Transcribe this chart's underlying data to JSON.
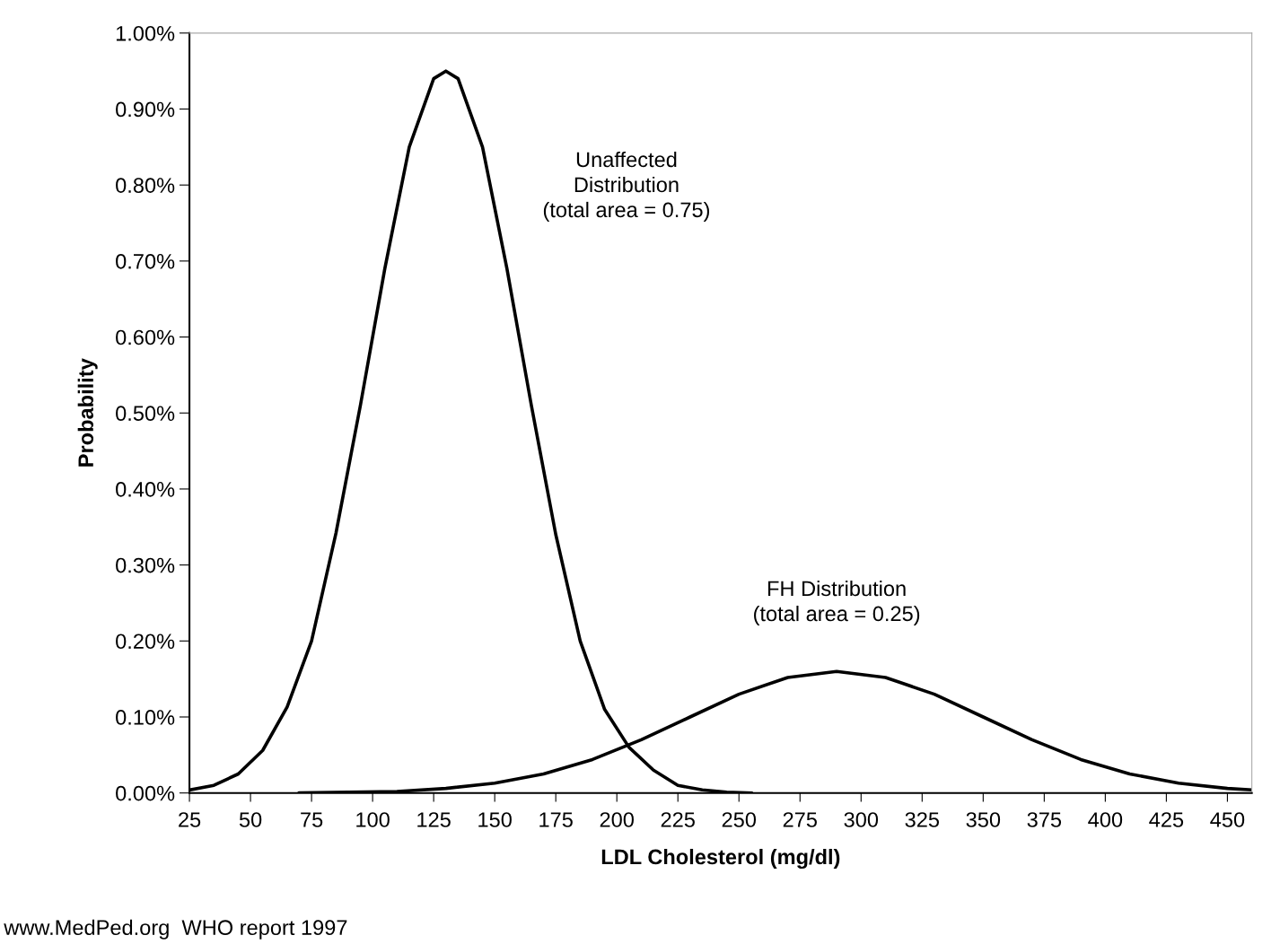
{
  "chart_data": {
    "type": "line",
    "xlabel": "LDL Cholesterol (mg/dl)",
    "ylabel": "Probability",
    "series": [
      {
        "name": "Unaffected\nDistribution\n(total area = 0.75)",
        "color": "#000000",
        "x": [
          25,
          35,
          45,
          55,
          65,
          75,
          85,
          95,
          105,
          115,
          125,
          130,
          135,
          145,
          155,
          165,
          175,
          185,
          195,
          205,
          215,
          225,
          235,
          245,
          255
        ],
        "values": [
          0.004,
          0.01,
          0.025,
          0.056,
          0.113,
          0.2,
          0.342,
          0.51,
          0.69,
          0.85,
          0.94,
          0.95,
          0.94,
          0.85,
          0.69,
          0.51,
          0.34,
          0.2,
          0.11,
          0.06,
          0.03,
          0.01,
          0.004,
          0.001,
          0.0
        ]
      },
      {
        "name": "FH Distribution\n(total area = 0.25)",
        "color": "#000000",
        "x": [
          70,
          90,
          110,
          130,
          150,
          170,
          190,
          210,
          230,
          250,
          270,
          290,
          310,
          330,
          350,
          370,
          390,
          410,
          430,
          450,
          460
        ],
        "values": [
          0.0,
          0.001,
          0.002,
          0.006,
          0.013,
          0.025,
          0.044,
          0.07,
          0.1,
          0.13,
          0.152,
          0.16,
          0.152,
          0.13,
          0.1,
          0.07,
          0.044,
          0.025,
          0.013,
          0.006,
          0.004
        ]
      }
    ],
    "xlim": [
      25,
      460
    ],
    "xticks": [
      25,
      50,
      75,
      100,
      125,
      150,
      175,
      200,
      225,
      250,
      275,
      300,
      325,
      350,
      375,
      400,
      425,
      450
    ],
    "ylim": [
      0,
      1.0
    ],
    "yticks": [
      {
        "value": 0,
        "label": "0.00%"
      },
      {
        "value": 0.1,
        "label": "0.10%"
      },
      {
        "value": 0.2,
        "label": "0.20%"
      },
      {
        "value": 0.3,
        "label": "0.30%"
      },
      {
        "value": 0.4,
        "label": "0.40%"
      },
      {
        "value": 0.5,
        "label": "0.50%"
      },
      {
        "value": 0.6,
        "label": "0.60%"
      },
      {
        "value": 0.7,
        "label": "0.70%"
      },
      {
        "value": 0.8,
        "label": "0.80%"
      },
      {
        "value": 0.9,
        "label": "0.90%"
      },
      {
        "value": 1.0,
        "label": "1.00%"
      }
    ],
    "grid": false,
    "marker": "none",
    "line_style": "solid",
    "annotations": [
      "www.MedPed.org  WHO report 1997"
    ]
  }
}
